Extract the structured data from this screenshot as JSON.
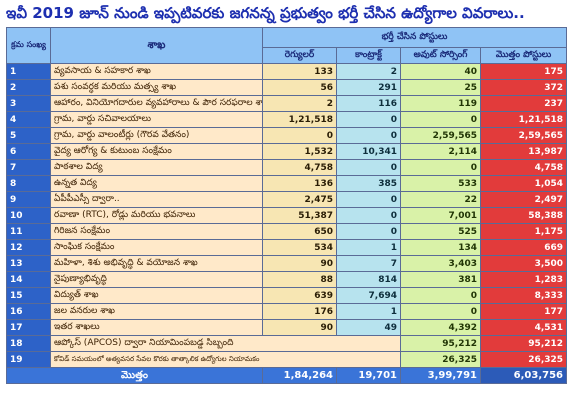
{
  "title": "ఇవీ 2019 జూన్ నుండి ఇప్పటివరకు జగనన్న ప్రభుత్వం భర్తీ చేసిన ఉద్యోగాల వివరాలు..",
  "header": {
    "sno": "క్రమ సంఖ్య",
    "dept": "శాఖ",
    "group": "భర్తీ చేసిన పోస్టులు",
    "regular": "రెగ్యులర్",
    "contract": "కాంట్రాక్ట్",
    "outsourcing": "అవుట్ సోర్సింగ్",
    "total": "మొత్తం పోస్టులు"
  },
  "rows": [
    {
      "n": "1",
      "name": "వ్యవసాయ & సహకార శాఖ",
      "reg": "133",
      "con": "2",
      "out": "40",
      "tot": "175"
    },
    {
      "n": "2",
      "name": "పశు సంవర్ధక మరియు మత్స్య శాఖ",
      "reg": "56",
      "con": "291",
      "out": "25",
      "tot": "372"
    },
    {
      "n": "3",
      "name": "ఆహారం, వినియోగదారుల వ్యవహారాలు & పౌర సరఫరాల శాఖ",
      "reg": "2",
      "con": "116",
      "out": "119",
      "tot": "237"
    },
    {
      "n": "4",
      "name": "గ్రామ, వార్డు సచివాలయాలు",
      "reg": "1,21,518",
      "con": "0",
      "out": "0",
      "tot": "1,21,518"
    },
    {
      "n": "5",
      "name": "గ్రామ, వార్డు వాలంటీర్లు (గౌరవ వేతనం)",
      "reg": "0",
      "con": "0",
      "out": "2,59,565",
      "tot": "2,59,565"
    },
    {
      "n": "6",
      "name": "వైద్య ఆరోగ్య & కుటుంబ సంక్షేమం",
      "reg": "1,532",
      "con": "10,341",
      "out": "2,114",
      "tot": "13,987"
    },
    {
      "n": "7",
      "name": "పాఠశాల విద్య",
      "reg": "4,758",
      "con": "0",
      "out": "0",
      "tot": "4,758"
    },
    {
      "n": "8",
      "name": "ఉన్నత విద్య",
      "reg": "136",
      "con": "385",
      "out": "533",
      "tot": "1,054"
    },
    {
      "n": "9",
      "name": "ఏపీపీఎస్సీ ద్వారా..",
      "reg": "2,475",
      "con": "0",
      "out": "22",
      "tot": "2,497"
    },
    {
      "n": "10",
      "name": "రవాణా (RTC), రోడ్లు మరియు భవనాలు",
      "reg": "51,387",
      "con": "0",
      "out": "7,001",
      "tot": "58,388"
    },
    {
      "n": "11",
      "name": "గిరిజన సంక్షేమం",
      "reg": "650",
      "con": "0",
      "out": "525",
      "tot": "1,175"
    },
    {
      "n": "12",
      "name": "సాంఘిక సంక్షేమం",
      "reg": "534",
      "con": "1",
      "out": "134",
      "tot": "669"
    },
    {
      "n": "13",
      "name": "మహిళా, శిశు అభివృద్ధి & వయోజన శాఖ",
      "reg": "90",
      "con": "7",
      "out": "3,403",
      "tot": "3,500"
    },
    {
      "n": "14",
      "name": "నైపుణ్యాభివృద్ధి",
      "reg": "88",
      "con": "814",
      "out": "381",
      "tot": "1,283"
    },
    {
      "n": "15",
      "name": "విద్యుత్ శాఖ",
      "reg": "639",
      "con": "7,694",
      "out": "0",
      "tot": "8,333"
    },
    {
      "n": "16",
      "name": "జల వనరుల శాఖ",
      "reg": "176",
      "con": "1",
      "out": "0",
      "tot": "177"
    },
    {
      "n": "17",
      "name": "ఇతర శాఖలు",
      "reg": "90",
      "con": "49",
      "out": "4,392",
      "tot": "4,531"
    },
    {
      "n": "18",
      "name": "ఆప్కోస్ (APCOS) ద్వారా నియామింపబడ్డ సిబ్బంది",
      "reg": "",
      "con": "",
      "out": "95,212",
      "tot": "95,212"
    },
    {
      "n": "19",
      "name": "కోవిడ్ సమయంలో అత్యవసర సేవల కొరకు తాత్కాలిక ఉద్యోగుల నియామకం",
      "reg": "",
      "con": "",
      "out": "26,325",
      "tot": "26,325"
    }
  ],
  "totals": {
    "label": "మొత్తం",
    "reg": "1,84,264",
    "con": "19,701",
    "out": "3,99,791",
    "tot": "6,03,756"
  },
  "colors": {
    "title": "#1d2fb0",
    "header": "#8fc3f5",
    "sno": "#2d62c8",
    "dept": "#ffe9c9",
    "regular": "#f7e6b3",
    "contract": "#b7e3ee",
    "outsourcing": "#d9f2a8",
    "total": "#e23b3b",
    "total_row": "#3a74d8"
  }
}
